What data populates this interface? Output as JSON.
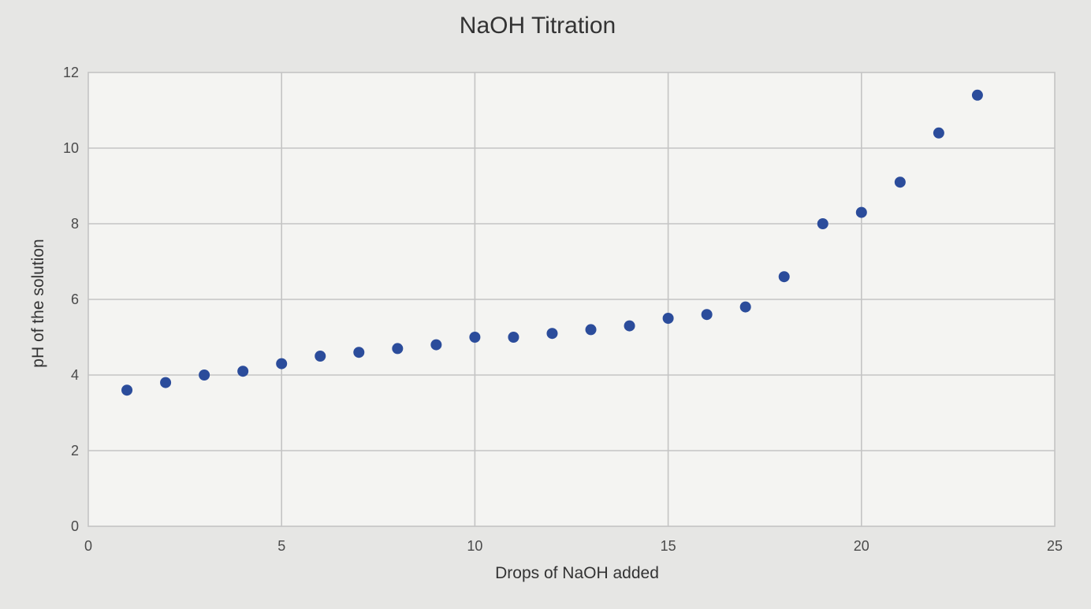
{
  "chart_data": {
    "type": "scatter",
    "title": "NaOH Titration",
    "xlabel": "Drops of NaOH added",
    "ylabel": "pH of the solution",
    "xlim": [
      0,
      25
    ],
    "ylim": [
      0,
      12
    ],
    "xticks": [
      0,
      5,
      10,
      15,
      20,
      25
    ],
    "yticks": [
      0,
      2,
      4,
      6,
      8,
      10,
      12
    ],
    "grid": true,
    "legend": "none",
    "marker_color": "#2b4c9b",
    "series": [
      {
        "x": [
          1,
          2,
          3,
          4,
          5,
          6,
          7,
          8,
          9,
          10,
          11,
          12,
          13,
          14,
          15,
          16,
          17,
          18,
          19,
          20,
          21,
          22,
          23
        ],
        "y": [
          3.6,
          3.8,
          4.0,
          4.1,
          4.3,
          4.5,
          4.6,
          4.7,
          4.8,
          5.0,
          5.0,
          5.1,
          5.2,
          5.3,
          5.5,
          5.6,
          5.8,
          6.6,
          8.0,
          8.3,
          9.1,
          10.4,
          11.4
        ]
      }
    ]
  }
}
